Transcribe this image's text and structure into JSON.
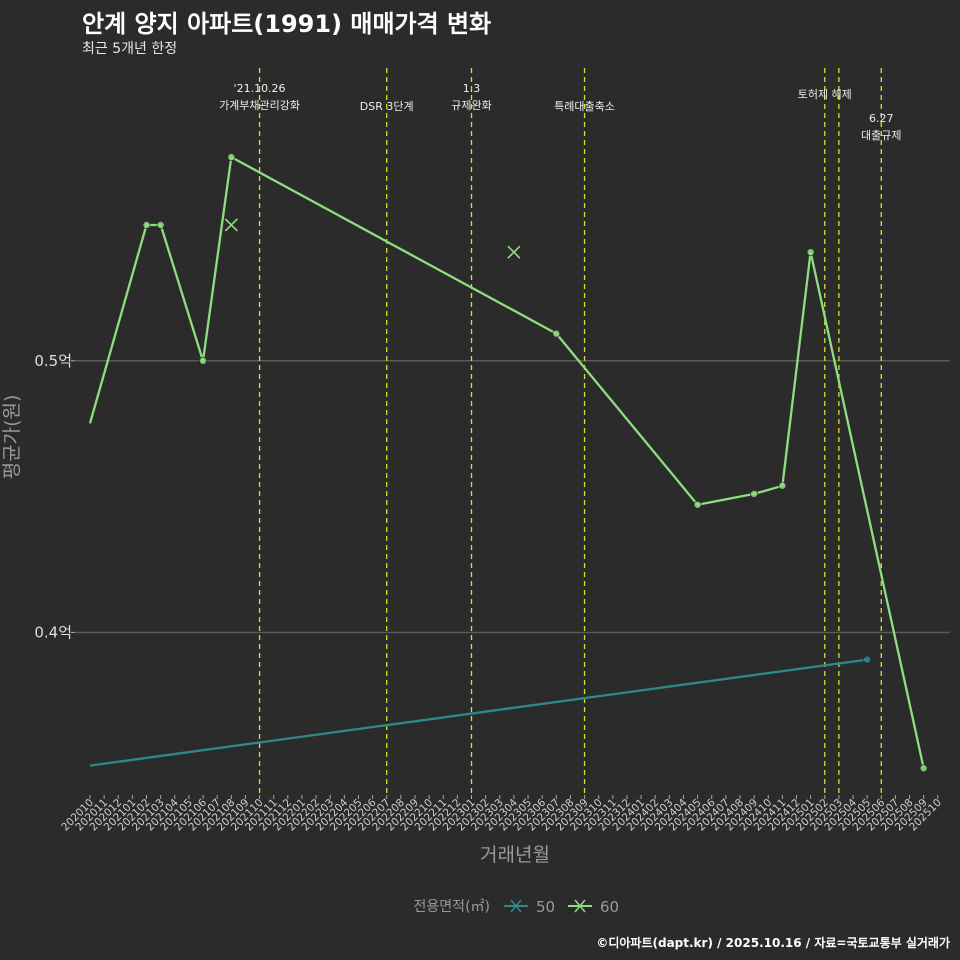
{
  "header": {
    "title": "안계 양지 아파트(1991) 매매가격 변화",
    "subtitle": "최근 5개년 한정",
    "caption": "©디아파트(dapt.kr) / 2025.10.16 / 자료=국토교통부 실거래가"
  },
  "colors": {
    "background": "#2b2b2c",
    "grid": "#5a5a5a",
    "series_50": "#2e8a8a",
    "series_60": "#8ede7f",
    "event_line": "#d7e02a"
  },
  "chart_data": {
    "type": "line",
    "xlabel": "거래년월",
    "ylabel": "평균가(원)",
    "ylim": [
      0.342,
      0.61
    ],
    "yticks": [
      {
        "value": 0.4,
        "label": "0.4억"
      },
      {
        "value": 0.5,
        "label": "0.5억"
      }
    ],
    "categories": [
      "202010",
      "202011",
      "202012",
      "202101",
      "202102",
      "202103",
      "202104",
      "202105",
      "202106",
      "202107",
      "202108",
      "202109",
      "202110",
      "202111",
      "202112",
      "202201",
      "202202",
      "202203",
      "202204",
      "202205",
      "202206",
      "202207",
      "202208",
      "202209",
      "202210",
      "202211",
      "202212",
      "202301",
      "202302",
      "202303",
      "202304",
      "202305",
      "202306",
      "202307",
      "202308",
      "202309",
      "202310",
      "202311",
      "202312",
      "202401",
      "202402",
      "202403",
      "202404",
      "202405",
      "202406",
      "202407",
      "202408",
      "202409",
      "202410",
      "202411",
      "202412",
      "202501",
      "202502",
      "202503",
      "202504",
      "202505",
      "202506",
      "202507",
      "202508",
      "202509",
      "202510"
    ],
    "legend": {
      "title": "전용면적(㎡)",
      "position": "bottom"
    },
    "series": [
      {
        "name": "50",
        "color": "#2e8a8a",
        "points": [
          {
            "x": "202010",
            "y": 0.351,
            "marker": false
          },
          {
            "x": "202505",
            "y": 0.39,
            "marker": true
          }
        ]
      },
      {
        "name": "60",
        "color": "#8ede7f",
        "points": [
          {
            "x": "202010",
            "y": 0.477,
            "marker": false
          },
          {
            "x": "202102",
            "y": 0.55,
            "marker": true
          },
          {
            "x": "202103",
            "y": 0.55,
            "marker": true
          },
          {
            "x": "202106",
            "y": 0.5,
            "marker": true
          },
          {
            "x": "202108",
            "y": 0.575,
            "marker": true
          },
          {
            "x": "202307",
            "y": 0.51,
            "marker": true
          },
          {
            "x": "202405",
            "y": 0.447,
            "marker": true
          },
          {
            "x": "202409",
            "y": 0.451,
            "marker": true
          },
          {
            "x": "202411",
            "y": 0.454,
            "marker": true
          },
          {
            "x": "202501",
            "y": 0.54,
            "marker": true
          },
          {
            "x": "202509",
            "y": 0.35,
            "marker": true
          }
        ]
      }
    ],
    "cross_markers": [
      {
        "series": "60",
        "x": "202108",
        "y": 0.55
      },
      {
        "series": "60",
        "x": "202304",
        "y": 0.54
      }
    ],
    "events": [
      {
        "x": "202110",
        "lines": [
          "'21.10.26",
          "가계부채관리강화"
        ],
        "level": 1
      },
      {
        "x": "202207",
        "lines": [
          "DSR 3단계"
        ],
        "level": 2
      },
      {
        "x": "202301",
        "lines": [
          "1.3",
          "규제완화"
        ],
        "level": 1
      },
      {
        "x": "202309",
        "lines": [
          "특례대출축소"
        ],
        "level": 2
      },
      {
        "x": "202502",
        "lines": [
          "토허제 해제"
        ],
        "level": 0
      },
      {
        "x": "202503",
        "lines": [],
        "level": 0
      },
      {
        "x": "202506",
        "lines": [
          "6.27",
          "대출규제"
        ],
        "level": 3
      }
    ]
  }
}
